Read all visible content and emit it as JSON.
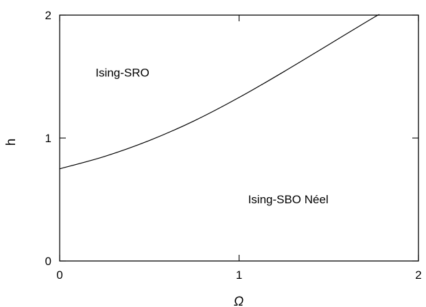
{
  "chart_data": {
    "type": "line",
    "xlabel": "Ω",
    "ylabel": "h",
    "xlim": [
      0,
      2
    ],
    "ylim": [
      0,
      2
    ],
    "xticks": [
      0,
      1,
      2
    ],
    "yticks": [
      0,
      1,
      2
    ],
    "grid": false,
    "series": [
      {
        "x": [
          0,
          0.25,
          0.5,
          0.75,
          1.0,
          1.25,
          1.5,
          1.75,
          1.78
        ],
        "y": [
          0.75,
          0.85,
          0.98,
          1.14,
          1.33,
          1.54,
          1.76,
          1.98,
          2.0
        ]
      }
    ],
    "annotations": [
      {
        "text": "Ising-SRO",
        "x": 0.2,
        "y": 1.5
      },
      {
        "text": "Ising-SBO Néel",
        "x": 1.05,
        "y": 0.47
      }
    ]
  }
}
